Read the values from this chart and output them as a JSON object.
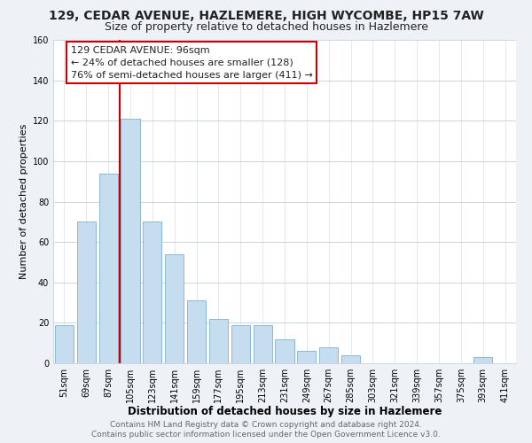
{
  "title": "129, CEDAR AVENUE, HAZLEMERE, HIGH WYCOMBE, HP15 7AW",
  "subtitle": "Size of property relative to detached houses in Hazlemere",
  "xlabel": "Distribution of detached houses by size in Hazlemere",
  "ylabel": "Number of detached properties",
  "bar_labels": [
    "51sqm",
    "69sqm",
    "87sqm",
    "105sqm",
    "123sqm",
    "141sqm",
    "159sqm",
    "177sqm",
    "195sqm",
    "213sqm",
    "231sqm",
    "249sqm",
    "267sqm",
    "285sqm",
    "303sqm",
    "321sqm",
    "339sqm",
    "357sqm",
    "375sqm",
    "393sqm",
    "411sqm"
  ],
  "bar_values": [
    19,
    70,
    94,
    121,
    70,
    54,
    31,
    22,
    19,
    19,
    12,
    6,
    8,
    4,
    0,
    0,
    0,
    0,
    0,
    3,
    0
  ],
  "bar_color": "#c5ddef",
  "bar_edge_color": "#8ab8d4",
  "vline_color": "#cc0000",
  "annotation_text": "129 CEDAR AVENUE: 96sqm\n← 24% of detached houses are smaller (128)\n76% of semi-detached houses are larger (411) →",
  "annotation_box_color": "#ffffff",
  "annotation_box_edge": "#cc0000",
  "ylim": [
    0,
    160
  ],
  "yticks": [
    0,
    20,
    40,
    60,
    80,
    100,
    120,
    140,
    160
  ],
  "footer1": "Contains HM Land Registry data © Crown copyright and database right 2024.",
  "footer2": "Contains public sector information licensed under the Open Government Licence v3.0.",
  "bg_color": "#eef2f7",
  "plot_bg_color": "#ffffff",
  "grid_color": "#ccd6e0",
  "title_fontsize": 10,
  "subtitle_fontsize": 9,
  "xlabel_fontsize": 8.5,
  "ylabel_fontsize": 8,
  "tick_fontsize": 7,
  "annotation_fontsize": 8,
  "footer_fontsize": 6.5
}
